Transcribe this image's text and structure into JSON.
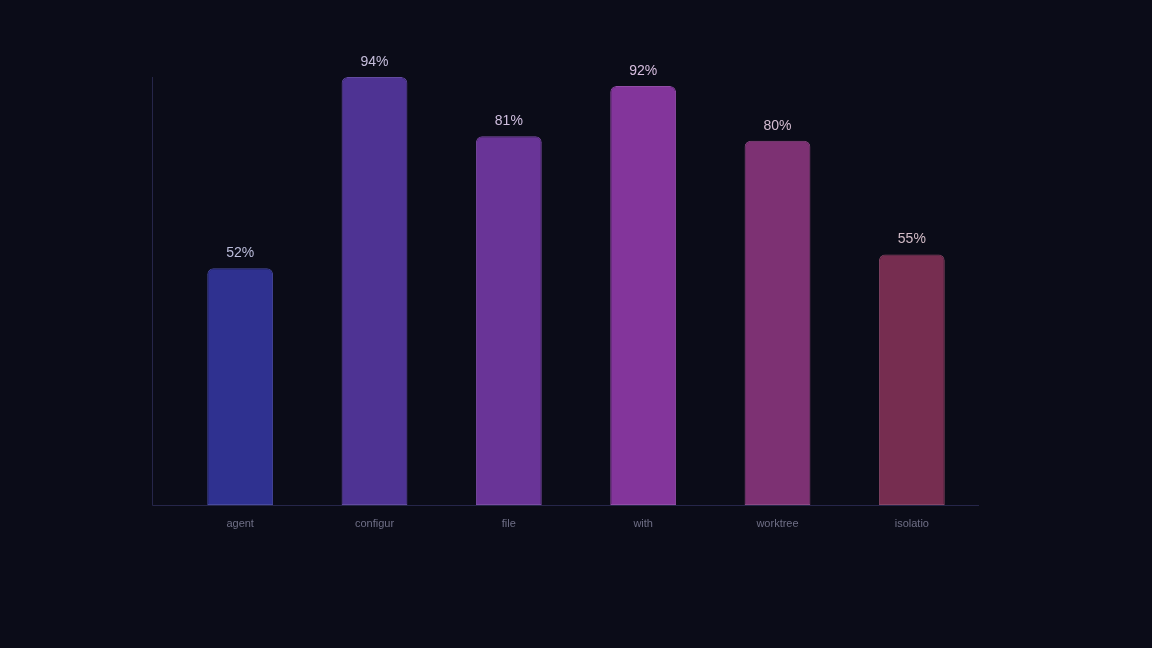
{
  "chart_data": {
    "type": "bar",
    "categories": [
      "agent",
      "configur",
      "file",
      "with",
      "worktree",
      "isolatio"
    ],
    "values": [
      52,
      94,
      81,
      92,
      80,
      55
    ],
    "value_labels": [
      "52%",
      "94%",
      "81%",
      "92%",
      "80%",
      "55%"
    ],
    "colors": [
      "#2f3190",
      "#4e3393",
      "#693497",
      "#83359b",
      "#7d3173",
      "#762d50"
    ]
  }
}
